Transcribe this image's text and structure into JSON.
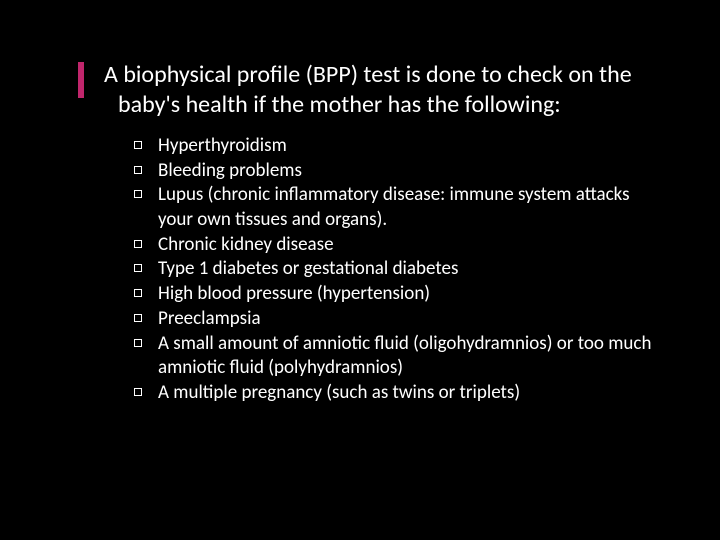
{
  "slide": {
    "background_color": "#000000",
    "text_color": "#ffffff",
    "accent_color": "#c0266c",
    "title_fontsize": 24,
    "body_fontsize": 19,
    "title": "A biophysical profile (BPP) test is done to check on the baby's health if the mother has the following:",
    "items": [
      "Hyperthyroidism",
      "Bleeding problems",
      "Lupus (chronic inflammatory disease: immune system attacks your own tissues and organs).",
      "Chronic kidney disease",
      "Type 1 diabetes or gestational diabetes",
      "High blood pressure (hypertension)",
      "Preeclampsia",
      "A small amount of amniotic fluid (oligohydramnios) or too much amniotic fluid (polyhydramnios)",
      "A multiple pregnancy (such as twins or triplets)"
    ],
    "bullet_style": "hollow-square"
  }
}
